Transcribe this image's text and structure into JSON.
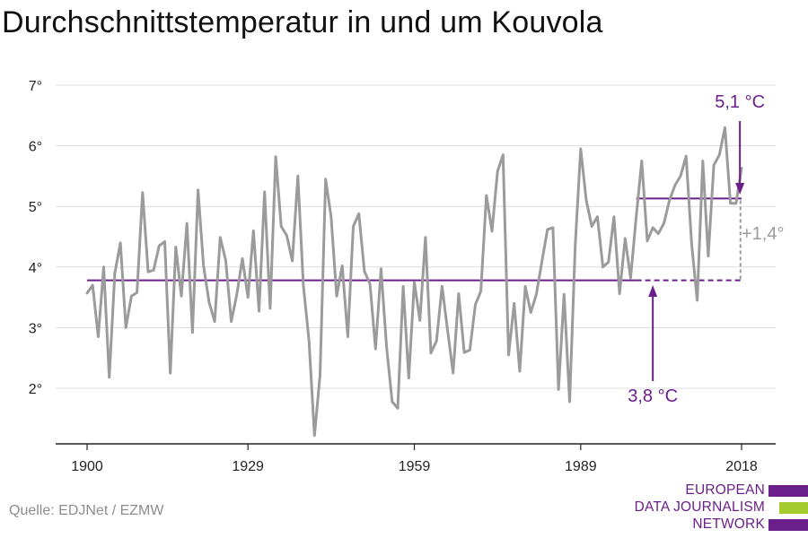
{
  "title": "Durchschnittstemperatur in und um Kouvola",
  "source": "Quelle: EDJNet / EZMW",
  "logo": {
    "lines": [
      "EUROPEAN",
      "DATA JOURNALISM",
      "NETWORK"
    ],
    "colors": [
      "#6a1f8a",
      "#a4cc2e",
      "#6a1f8a"
    ]
  },
  "chart_data": {
    "type": "line",
    "title": "Durchschnittstemperatur in und um Kouvola",
    "xlabel": "",
    "ylabel": "",
    "x_ticks": [
      "1900",
      "1929",
      "1959",
      "1989",
      "2018"
    ],
    "y_ticks": [
      "2°",
      "3°",
      "4°",
      "5°",
      "6°",
      "7°"
    ],
    "xlim": [
      1900,
      2018
    ],
    "ylim": [
      1.0,
      7.2
    ],
    "grid": true,
    "series": [
      {
        "color": "#9b9b9b",
        "x": [
          1900,
          1901,
          1902,
          1903,
          1904,
          1905,
          1906,
          1907,
          1908,
          1909,
          1910,
          1911,
          1912,
          1913,
          1914,
          1915,
          1916,
          1917,
          1918,
          1919,
          1920,
          1921,
          1922,
          1923,
          1924,
          1925,
          1926,
          1927,
          1928,
          1929,
          1930,
          1931,
          1932,
          1933,
          1934,
          1935,
          1936,
          1937,
          1938,
          1939,
          1940,
          1941,
          1942,
          1943,
          1944,
          1945,
          1946,
          1947,
          1948,
          1949,
          1950,
          1951,
          1952,
          1953,
          1954,
          1955,
          1956,
          1957,
          1958,
          1959,
          1960,
          1961,
          1962,
          1963,
          1964,
          1965,
          1966,
          1967,
          1968,
          1969,
          1970,
          1971,
          1972,
          1973,
          1974,
          1975,
          1976,
          1977,
          1978,
          1979,
          1980,
          1981,
          1982,
          1983,
          1984,
          1985,
          1986,
          1987,
          1988,
          1989,
          1990,
          1991,
          1992,
          1993,
          1994,
          1995,
          1996,
          1997,
          1998,
          1999,
          2000,
          2001,
          2002,
          2003,
          2004,
          2005,
          2006,
          2007,
          2008,
          2009,
          2010,
          2011,
          2012,
          2013,
          2014,
          2015,
          2016,
          2017,
          2018
        ],
        "values": [
          3.57,
          3.7,
          2.85,
          4.0,
          2.18,
          3.9,
          4.4,
          3.0,
          3.52,
          3.58,
          5.23,
          3.92,
          3.95,
          4.35,
          4.42,
          2.25,
          4.33,
          3.52,
          4.72,
          2.92,
          5.27,
          4.02,
          3.42,
          3.1,
          4.49,
          4.11,
          3.1,
          3.55,
          4.14,
          3.5,
          4.6,
          3.27,
          5.24,
          3.32,
          5.82,
          4.67,
          4.52,
          4.1,
          5.5,
          3.7,
          2.8,
          1.22,
          2.22,
          5.45,
          4.83,
          3.52,
          4.02,
          2.85,
          4.67,
          4.88,
          3.93,
          3.72,
          2.65,
          3.97,
          2.68,
          1.78,
          1.67,
          3.68,
          2.17,
          3.75,
          3.12,
          4.49,
          2.58,
          2.78,
          3.68,
          2.95,
          2.25,
          3.56,
          2.59,
          2.63,
          3.38,
          3.6,
          5.18,
          4.59,
          5.58,
          5.85,
          2.55,
          3.4,
          2.28,
          3.68,
          3.25,
          3.55,
          4.09,
          4.62,
          4.65,
          1.98,
          3.55,
          1.78,
          4.35,
          5.95,
          5.1,
          4.67,
          4.83,
          4.0,
          4.08,
          4.83,
          3.56,
          4.47,
          3.82,
          4.82,
          5.75,
          4.43,
          4.65,
          4.55,
          4.72,
          5.1,
          5.35,
          5.5,
          5.83,
          4.38,
          3.45,
          5.75,
          4.18,
          5.68,
          5.85,
          6.3,
          5.05,
          5.05,
          5.63
        ]
      }
    ],
    "reference_lines": [
      {
        "label": "3,8 °C",
        "value": 3.78,
        "x_from": 1900,
        "x_to": 2018,
        "color": "#6a1f8a"
      },
      {
        "label": "5,1 °C",
        "value": 5.13,
        "x_from": 1999,
        "x_to": 2018,
        "color": "#6a1f8a"
      }
    ],
    "difference_label": "+1,4°",
    "difference_color": "#9b9b9b"
  }
}
